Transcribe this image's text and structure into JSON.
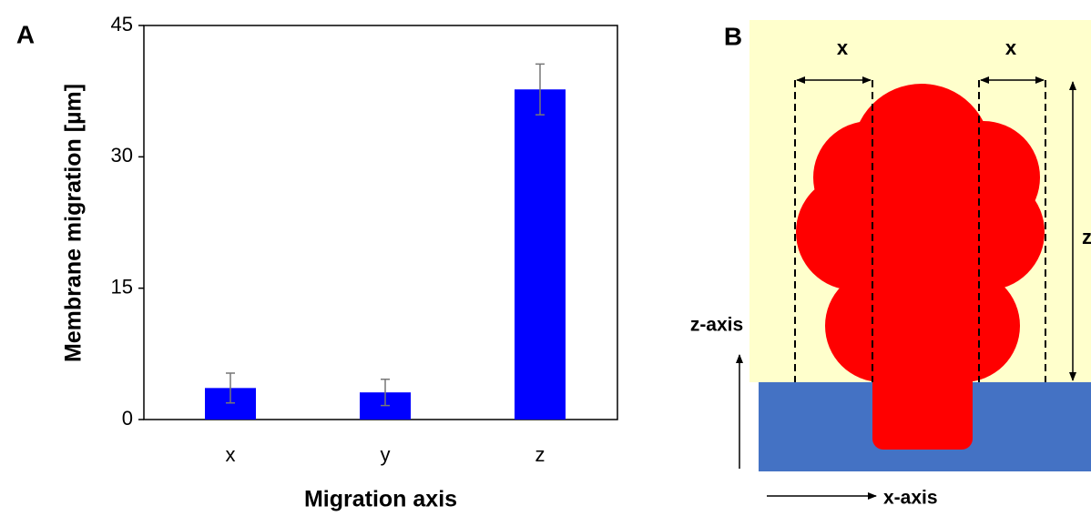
{
  "chart_data": {
    "type": "bar",
    "panel_label": "A",
    "x_label": "Migration axis",
    "y_label": "Membrane migration [µm]",
    "categories": [
      "x",
      "y",
      "z"
    ],
    "values": [
      3.6,
      3.1,
      37.7
    ],
    "errors": [
      1.7,
      1.5,
      2.9
    ],
    "color": "#0000ff",
    "error_color": "#777777",
    "ylim": [
      0,
      45
    ],
    "yticks": [
      0,
      15,
      30,
      45
    ],
    "grid": false
  },
  "diagram": {
    "panel_label": "B",
    "width_label_left": "x",
    "width_label_right": "x",
    "height_label": "z",
    "vertical_axis_label": "z-axis",
    "horizontal_axis_label": "x-axis"
  }
}
